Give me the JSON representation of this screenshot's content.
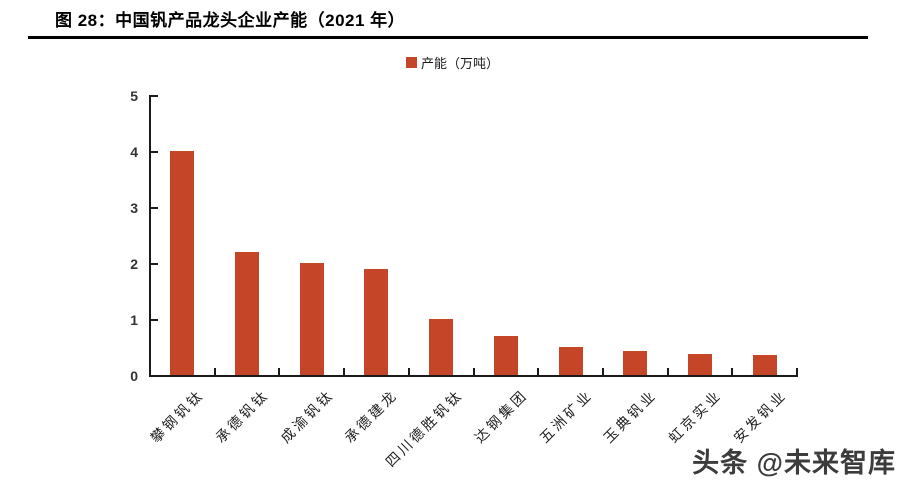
{
  "page": {
    "title": "图 28：中国钒产品龙头企业产能（2021 年）"
  },
  "legend": {
    "label": "产能（万吨）"
  },
  "watermark": {
    "text": "头条 @未来智库"
  },
  "colors": {
    "bar": "#C54528",
    "axis": "#1a1a1a",
    "title": "#000000",
    "watermark": "#3C3C3C"
  },
  "chart_data": {
    "type": "bar",
    "title": "图 28：中国钒产品龙头企业产能（2021 年）",
    "series_name": "产能（万吨）",
    "categories": [
      "攀钢钒钛",
      "承德钒钛",
      "成渝钒钛",
      "承德建龙",
      "四川德胜钒钛",
      "达钢集团",
      "五洲矿业",
      "玉典钒业",
      "虹京实业",
      "安发钒业"
    ],
    "values": [
      4.0,
      2.2,
      2.0,
      1.9,
      1.0,
      0.7,
      0.5,
      0.42,
      0.38,
      0.35
    ],
    "xlabel": "",
    "ylabel": "",
    "ylim": [
      0,
      5
    ],
    "yticks": [
      0,
      1,
      2,
      3,
      4,
      5
    ],
    "grid": false,
    "legend_position": "top-center",
    "bar_color": "#C54528"
  }
}
